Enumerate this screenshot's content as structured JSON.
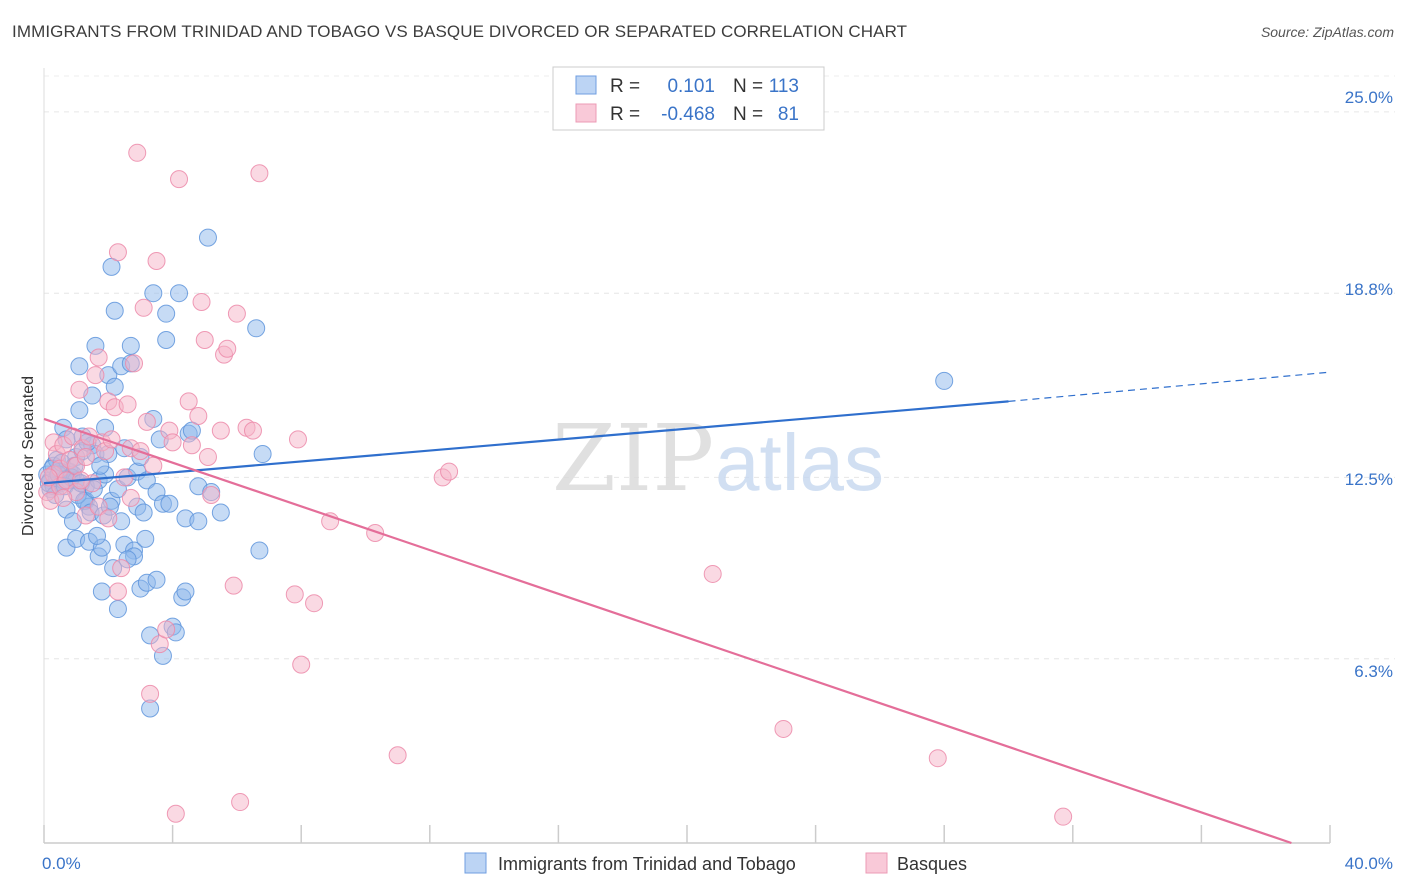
{
  "chart_data": {
    "type": "scatter",
    "title": "IMMIGRANTS FROM TRINIDAD AND TOBAGO VS BASQUE DIVORCED OR SEPARATED CORRELATION CHART",
    "source": "Source: ZipAtlas.com",
    "ylabel": "Divorced or Separated",
    "xlim": [
      0,
      40
    ],
    "ylim": [
      0,
      26.5
    ],
    "x_tick_labels": [
      "0.0%",
      "40.0%"
    ],
    "y_ticks": [
      {
        "value": 6.3,
        "label": "6.3%"
      },
      {
        "value": 12.5,
        "label": "12.5%"
      },
      {
        "value": 18.8,
        "label": "18.8%"
      },
      {
        "value": 25.0,
        "label": "25.0%"
      }
    ],
    "watermark": {
      "zip": "ZIP",
      "atlas": "atlas"
    },
    "legend": {
      "rows": [
        {
          "r_label": "R =",
          "r_value": "0.101",
          "n_label": "N =",
          "n_value": "113"
        },
        {
          "r_label": "R =",
          "r_value": "-0.468",
          "n_label": "N =",
          "n_value": "81"
        }
      ]
    },
    "series": [
      {
        "name": "Immigrants from Trinidad and Tobago",
        "color": "#8db8ec",
        "stroke": "#5f95dc",
        "line_color": "#2f6fcd",
        "trend": {
          "x0": 0.0,
          "y0": 12.3,
          "x1": 30.0,
          "y1": 15.1,
          "dash_to_x": 40.0,
          "dash_to_y": 16.1
        },
        "points": [
          [
            0.1,
            12.6
          ],
          [
            0.2,
            12.4
          ],
          [
            0.2,
            12.1
          ],
          [
            0.3,
            12.9
          ],
          [
            0.3,
            12.2
          ],
          [
            0.4,
            13.1
          ],
          [
            0.4,
            12.5
          ],
          [
            0.5,
            12.3
          ],
          [
            0.5,
            12.7
          ],
          [
            0.6,
            12.4
          ],
          [
            0.6,
            14.2
          ],
          [
            0.7,
            13.8
          ],
          [
            0.7,
            11.4
          ],
          [
            0.7,
            10.1
          ],
          [
            0.8,
            12.7
          ],
          [
            0.8,
            12.4
          ],
          [
            0.9,
            12.6
          ],
          [
            0.9,
            11.0
          ],
          [
            1.0,
            13.2
          ],
          [
            1.0,
            12.4
          ],
          [
            1.0,
            10.4
          ],
          [
            1.1,
            14.8
          ],
          [
            1.1,
            16.3
          ],
          [
            1.2,
            13.9
          ],
          [
            1.2,
            13.4
          ],
          [
            1.3,
            12.2
          ],
          [
            1.3,
            11.7
          ],
          [
            1.4,
            11.5
          ],
          [
            1.4,
            10.3
          ],
          [
            1.5,
            15.3
          ],
          [
            1.5,
            13.6
          ],
          [
            1.6,
            17.0
          ],
          [
            1.6,
            13.3
          ],
          [
            1.7,
            12.4
          ],
          [
            1.7,
            9.8
          ],
          [
            1.8,
            10.1
          ],
          [
            1.8,
            8.6
          ],
          [
            1.9,
            14.2
          ],
          [
            1.9,
            12.6
          ],
          [
            2.0,
            16.0
          ],
          [
            2.0,
            13.3
          ],
          [
            2.1,
            11.7
          ],
          [
            2.1,
            19.7
          ],
          [
            2.2,
            18.2
          ],
          [
            2.2,
            15.6
          ],
          [
            2.3,
            12.1
          ],
          [
            2.3,
            8.0
          ],
          [
            2.4,
            16.3
          ],
          [
            2.4,
            11.0
          ],
          [
            2.5,
            13.5
          ],
          [
            2.5,
            10.2
          ],
          [
            2.6,
            12.5
          ],
          [
            2.7,
            17.0
          ],
          [
            2.7,
            16.4
          ],
          [
            2.8,
            10.0
          ],
          [
            2.8,
            9.8
          ],
          [
            2.9,
            11.5
          ],
          [
            2.9,
            12.7
          ],
          [
            3.0,
            8.7
          ],
          [
            3.0,
            13.2
          ],
          [
            3.1,
            11.3
          ],
          [
            3.2,
            12.4
          ],
          [
            3.2,
            8.9
          ],
          [
            3.3,
            4.6
          ],
          [
            3.3,
            7.1
          ],
          [
            3.4,
            18.8
          ],
          [
            3.4,
            14.5
          ],
          [
            3.5,
            9.0
          ],
          [
            3.5,
            12.0
          ],
          [
            3.6,
            13.8
          ],
          [
            3.7,
            11.6
          ],
          [
            3.7,
            6.4
          ],
          [
            3.8,
            17.2
          ],
          [
            3.8,
            18.1
          ],
          [
            3.9,
            11.6
          ],
          [
            4.0,
            7.4
          ],
          [
            4.1,
            7.2
          ],
          [
            4.2,
            18.8
          ],
          [
            4.3,
            8.4
          ],
          [
            4.4,
            8.6
          ],
          [
            4.4,
            11.1
          ],
          [
            4.5,
            14.0
          ],
          [
            4.6,
            14.1
          ],
          [
            4.8,
            12.2
          ],
          [
            4.8,
            11.0
          ],
          [
            5.1,
            20.7
          ],
          [
            5.2,
            12.0
          ],
          [
            5.5,
            11.3
          ],
          [
            6.6,
            17.6
          ],
          [
            6.7,
            10.0
          ],
          [
            6.8,
            13.3
          ],
          [
            28.0,
            15.8
          ],
          [
            0.15,
            12.3
          ],
          [
            0.25,
            12.8
          ],
          [
            0.35,
            11.9
          ],
          [
            0.45,
            12.6
          ],
          [
            0.55,
            13.0
          ],
          [
            0.65,
            12.2
          ],
          [
            0.85,
            12.5
          ],
          [
            0.95,
            12.9
          ],
          [
            1.05,
            11.9
          ],
          [
            1.15,
            12.3
          ],
          [
            1.25,
            11.7
          ],
          [
            1.35,
            13.7
          ],
          [
            1.45,
            11.3
          ],
          [
            1.55,
            12.1
          ],
          [
            1.65,
            10.5
          ],
          [
            1.75,
            12.9
          ],
          [
            1.85,
            11.2
          ],
          [
            2.05,
            11.5
          ],
          [
            2.15,
            9.4
          ],
          [
            2.6,
            9.7
          ],
          [
            3.15,
            10.4
          ]
        ]
      },
      {
        "name": "Basques",
        "color": "#f6b3c8",
        "stroke": "#ec89a9",
        "line_color": "#e46e99",
        "trend": {
          "x0": 0.0,
          "y0": 14.5,
          "x1": 38.8,
          "y1": 0.0
        },
        "points": [
          [
            0.1,
            12.0
          ],
          [
            0.2,
            11.7
          ],
          [
            0.3,
            13.7
          ],
          [
            0.3,
            12.6
          ],
          [
            0.4,
            13.3
          ],
          [
            0.5,
            12.8
          ],
          [
            0.5,
            12.2
          ],
          [
            0.6,
            13.6
          ],
          [
            0.7,
            12.4
          ],
          [
            0.8,
            13.1
          ],
          [
            0.9,
            13.9
          ],
          [
            1.0,
            12.9
          ],
          [
            1.0,
            12.0
          ],
          [
            1.1,
            15.5
          ],
          [
            1.2,
            13.5
          ],
          [
            1.3,
            13.2
          ],
          [
            1.3,
            11.2
          ],
          [
            1.4,
            13.9
          ],
          [
            1.5,
            12.3
          ],
          [
            1.6,
            16.0
          ],
          [
            1.7,
            16.6
          ],
          [
            1.7,
            11.5
          ],
          [
            1.8,
            13.7
          ],
          [
            1.9,
            13.4
          ],
          [
            2.0,
            15.1
          ],
          [
            2.0,
            11.1
          ],
          [
            2.1,
            13.8
          ],
          [
            2.2,
            14.9
          ],
          [
            2.3,
            20.2
          ],
          [
            2.3,
            8.6
          ],
          [
            2.4,
            9.4
          ],
          [
            2.5,
            12.5
          ],
          [
            2.6,
            15.0
          ],
          [
            2.7,
            13.5
          ],
          [
            2.7,
            11.8
          ],
          [
            2.8,
            16.4
          ],
          [
            2.9,
            23.6
          ],
          [
            3.0,
            13.4
          ],
          [
            3.1,
            18.3
          ],
          [
            3.2,
            14.4
          ],
          [
            3.3,
            5.1
          ],
          [
            3.4,
            12.9
          ],
          [
            3.5,
            19.9
          ],
          [
            3.6,
            6.8
          ],
          [
            3.8,
            7.3
          ],
          [
            3.9,
            14.1
          ],
          [
            4.0,
            13.7
          ],
          [
            4.1,
            1.0
          ],
          [
            4.2,
            22.7
          ],
          [
            4.5,
            15.1
          ],
          [
            4.6,
            13.6
          ],
          [
            4.8,
            14.6
          ],
          [
            4.9,
            18.5
          ],
          [
            5.0,
            17.2
          ],
          [
            5.1,
            13.2
          ],
          [
            5.2,
            11.9
          ],
          [
            5.5,
            14.1
          ],
          [
            5.6,
            16.7
          ],
          [
            5.7,
            16.9
          ],
          [
            5.9,
            8.8
          ],
          [
            6.0,
            18.1
          ],
          [
            6.1,
            1.4
          ],
          [
            6.3,
            14.2
          ],
          [
            6.5,
            14.1
          ],
          [
            6.7,
            22.9
          ],
          [
            7.8,
            8.5
          ],
          [
            7.9,
            13.8
          ],
          [
            8.0,
            6.1
          ],
          [
            8.4,
            8.2
          ],
          [
            8.9,
            11.0
          ],
          [
            10.3,
            10.6
          ],
          [
            11.0,
            3.0
          ],
          [
            12.4,
            12.5
          ],
          [
            12.6,
            12.7
          ],
          [
            20.8,
            9.2
          ],
          [
            23.0,
            3.9
          ],
          [
            27.8,
            2.9
          ],
          [
            31.7,
            0.9
          ],
          [
            0.15,
            12.5
          ],
          [
            0.6,
            11.8
          ],
          [
            1.15,
            12.4
          ]
        ]
      }
    ]
  }
}
